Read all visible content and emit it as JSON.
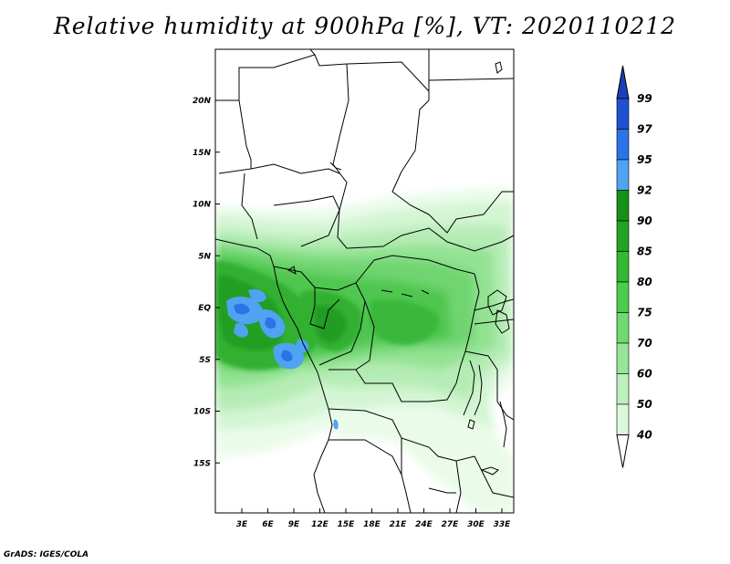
{
  "title": "Relative humidity at 900hPa [%], VT: 2020110212",
  "credit": "GrADS: IGES/COLA",
  "map": {
    "lat_ticks": [
      {
        "label": "20N",
        "lat": 20
      },
      {
        "label": "15N",
        "lat": 15
      },
      {
        "label": "10N",
        "lat": 10
      },
      {
        "label": "5N",
        "lat": 5
      },
      {
        "label": "EQ",
        "lat": 0
      },
      {
        "label": "5S",
        "lat": -5
      },
      {
        "label": "10S",
        "lat": -10
      },
      {
        "label": "15S",
        "lat": -15
      }
    ],
    "lon_ticks": [
      {
        "label": "3E",
        "lon": 3
      },
      {
        "label": "6E",
        "lon": 6
      },
      {
        "label": "9E",
        "lon": 9
      },
      {
        "label": "12E",
        "lon": 12
      },
      {
        "label": "15E",
        "lon": 15
      },
      {
        "label": "18E",
        "lon": 18
      },
      {
        "label": "21E",
        "lon": 21
      },
      {
        "label": "24E",
        "lon": 24
      },
      {
        "label": "27E",
        "lon": 27
      },
      {
        "label": "30E",
        "lon": 30
      },
      {
        "label": "33E",
        "lon": 33
      }
    ]
  },
  "colorbar": {
    "levels": [
      {
        "label": "99",
        "color": "#1e50d0"
      },
      {
        "label": "97",
        "color": "#2b74e8"
      },
      {
        "label": "95",
        "color": "#4fa3f2"
      },
      {
        "label": "92",
        "color": "#169016"
      },
      {
        "label": "90",
        "color": "#22a422"
      },
      {
        "label": "85",
        "color": "#33b933"
      },
      {
        "label": "80",
        "color": "#4ccc4c"
      },
      {
        "label": "75",
        "color": "#70da70"
      },
      {
        "label": "70",
        "color": "#97e697"
      },
      {
        "label": "60",
        "color": "#bdf0bd"
      },
      {
        "label": "50",
        "color": "#dcf8dc"
      },
      {
        "label": "40",
        "color": "#f0fcf0"
      }
    ],
    "top_color": "#1c3fb8",
    "bottom_color": "#ffffff"
  }
}
